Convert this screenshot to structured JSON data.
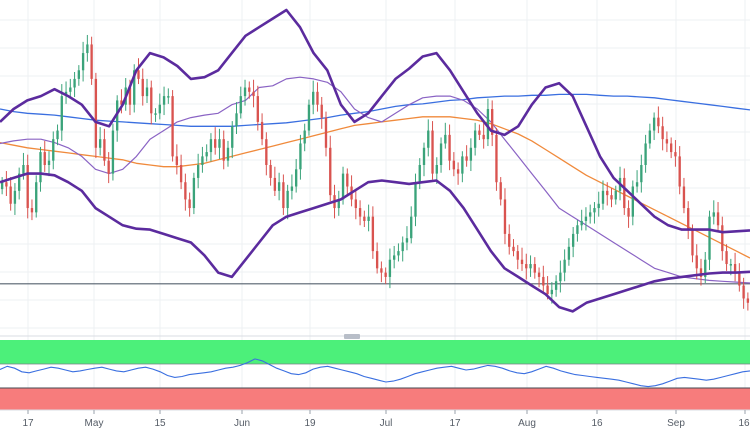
{
  "chart_data": {
    "type": "candlestick",
    "title": "",
    "xlabel": "",
    "ylabel": "",
    "grid": true,
    "x_tick_labels": [
      "17",
      "May",
      "15",
      "Jun",
      "19",
      "Jul",
      "17",
      "Aug",
      "16",
      "Sep",
      "16"
    ],
    "colors": {
      "bull_candle": "#3aa37a",
      "bear_candle": "#d9534f",
      "bollinger_bands": "#5b2b9e",
      "sma_20": "#8a63c4",
      "sma_100": "#f08a3c",
      "sma_200": "#3a6fe0",
      "horizontal_level": "#55606e",
      "rsi_line": "#3a6fe0",
      "rsi_overbought_zone": "#4cf07a",
      "rsi_oversold_zone": "#f77c7c"
    },
    "price_pane": {
      "price_scale": "not shown",
      "series": [
        {
          "kind": "candles",
          "closes": [
            150,
            145,
            125,
            140,
            160,
            170,
            120,
            115,
            150,
            185,
            170,
            175,
            200,
            210,
            250,
            255,
            260,
            270,
            280,
            300,
            310,
            270,
            190,
            200,
            175,
            160,
            210,
            245,
            240,
            260,
            240,
            280,
            270,
            250,
            260,
            230,
            230,
            240,
            250,
            250,
            180,
            170,
            150,
            130,
            120,
            155,
            170,
            180,
            185,
            200,
            190,
            200,
            175,
            190,
            215,
            230,
            250,
            260,
            255,
            250,
            220,
            200,
            170,
            155,
            140,
            150,
            120,
            140,
            145,
            165,
            195,
            210,
            240,
            255,
            240,
            225,
            190,
            135,
            120,
            130,
            160,
            145,
            130,
            120,
            110,
            105,
            110,
            70,
            50,
            45,
            40,
            60,
            65,
            70,
            80,
            85,
            110,
            150,
            170,
            190,
            210,
            160,
            170,
            195,
            205,
            175,
            165,
            160,
            180,
            175,
            190,
            210,
            205,
            200,
            235,
            205,
            150,
            130,
            90,
            75,
            70,
            60,
            55,
            50,
            55,
            45,
            40,
            30,
            20,
            25,
            35,
            45,
            60,
            75,
            90,
            100,
            105,
            110,
            115,
            120,
            125,
            140,
            135,
            130,
            140,
            155,
            120,
            110,
            145,
            150,
            170,
            195,
            210,
            225,
            215,
            200,
            195,
            185,
            180,
            145,
            120,
            95,
            65,
            50,
            40,
            60,
            110,
            115,
            100,
            70,
            55,
            55,
            45,
            30,
            15,
            10
          ]
        },
        {
          "kind": "bollinger_upper",
          "levels": [
            220,
            235,
            245,
            250,
            258,
            250,
            240,
            220,
            215,
            240,
            280,
            300,
            295,
            285,
            270,
            272,
            280,
            300,
            320,
            330,
            340,
            350,
            330,
            300,
            280,
            240,
            220,
            230,
            250,
            270,
            282,
            296,
            300,
            280,
            255,
            230,
            210,
            205,
            215,
            240,
            260,
            265,
            250,
            215,
            180,
            155,
            140,
            125,
            110,
            100,
            95,
            95,
            95,
            92,
            93,
            94
          ]
        },
        {
          "kind": "bollinger_lower",
          "levels": [
            150,
            155,
            160,
            160,
            158,
            150,
            140,
            120,
            110,
            100,
            96,
            95,
            90,
            85,
            80,
            65,
            45,
            40,
            60,
            80,
            100,
            110,
            115,
            120,
            125,
            130,
            140,
            150,
            152,
            150,
            148,
            150,
            152,
            140,
            120,
            95,
            70,
            50,
            40,
            30,
            20,
            5,
            0,
            10,
            15,
            20,
            25,
            30,
            35,
            38,
            40,
            42,
            44,
            45,
            45,
            46
          ]
        },
        {
          "kind": "sma_20",
          "levels": [
            195,
            198,
            200,
            200,
            196,
            190,
            180,
            165,
            160,
            165,
            180,
            200,
            210,
            220,
            225,
            228,
            230,
            240,
            245,
            260,
            262,
            270,
            272,
            270,
            266,
            255,
            235,
            225,
            220,
            230,
            240,
            248,
            250,
            250,
            245,
            235,
            220,
            200,
            180,
            160,
            140,
            120,
            110,
            100,
            90,
            80,
            70,
            60,
            50,
            45,
            40,
            38,
            36,
            35,
            34,
            33
          ]
        },
        {
          "kind": "sma_100",
          "levels": [
            196,
            193,
            190,
            188,
            186,
            184,
            182,
            180,
            178,
            176,
            172,
            170,
            168,
            168,
            170,
            172,
            176,
            180,
            184,
            188,
            192,
            196,
            200,
            204,
            208,
            212,
            216,
            218,
            220,
            222,
            224,
            226,
            226,
            226,
            224,
            222,
            218,
            212,
            206,
            198,
            188,
            178,
            168,
            158,
            150,
            142,
            134,
            126,
            118,
            110,
            102,
            94,
            86,
            78,
            70,
            62
          ]
        },
        {
          "kind": "sma_200",
          "levels": [
            235,
            232,
            230,
            229,
            228,
            226,
            224,
            222,
            221,
            220,
            219,
            218,
            217,
            216,
            215,
            215,
            215,
            215,
            216,
            217,
            218,
            219,
            221,
            223,
            225,
            228,
            230,
            232,
            235,
            238,
            240,
            241,
            243,
            245,
            246,
            248,
            249,
            250,
            250,
            251,
            251,
            252,
            252,
            252,
            251,
            250,
            250,
            249,
            248,
            246,
            244,
            242,
            240,
            238,
            236,
            234
          ]
        }
      ],
      "horizontal_level_position_fraction": 0.86
    },
    "oscillator_pane": {
      "type": "line",
      "upper_zone": "green band (overbought)",
      "lower_zone": "red band (oversold)",
      "values": [
        55,
        62,
        58,
        50,
        48,
        52,
        56,
        60,
        58,
        54,
        50,
        52,
        55,
        58,
        60,
        56,
        52,
        50,
        54,
        58,
        60,
        56,
        50,
        42,
        38,
        40,
        44,
        46,
        48,
        50,
        54,
        58,
        60,
        64,
        70,
        78,
        74,
        66,
        58,
        52,
        46,
        44,
        48,
        56,
        60,
        62,
        58,
        54,
        50,
        46,
        40,
        36,
        32,
        28,
        30,
        34,
        40,
        46,
        50,
        54,
        58,
        60,
        62,
        58,
        54,
        56,
        60,
        64,
        62,
        58,
        52,
        48,
        46,
        50,
        56,
        62,
        58,
        52,
        48,
        44,
        42,
        40,
        38,
        36,
        34,
        32,
        28,
        24,
        20,
        18,
        20,
        24,
        30,
        36,
        38,
        36,
        34,
        32,
        34,
        38,
        42,
        46,
        50,
        52
      ]
    }
  }
}
